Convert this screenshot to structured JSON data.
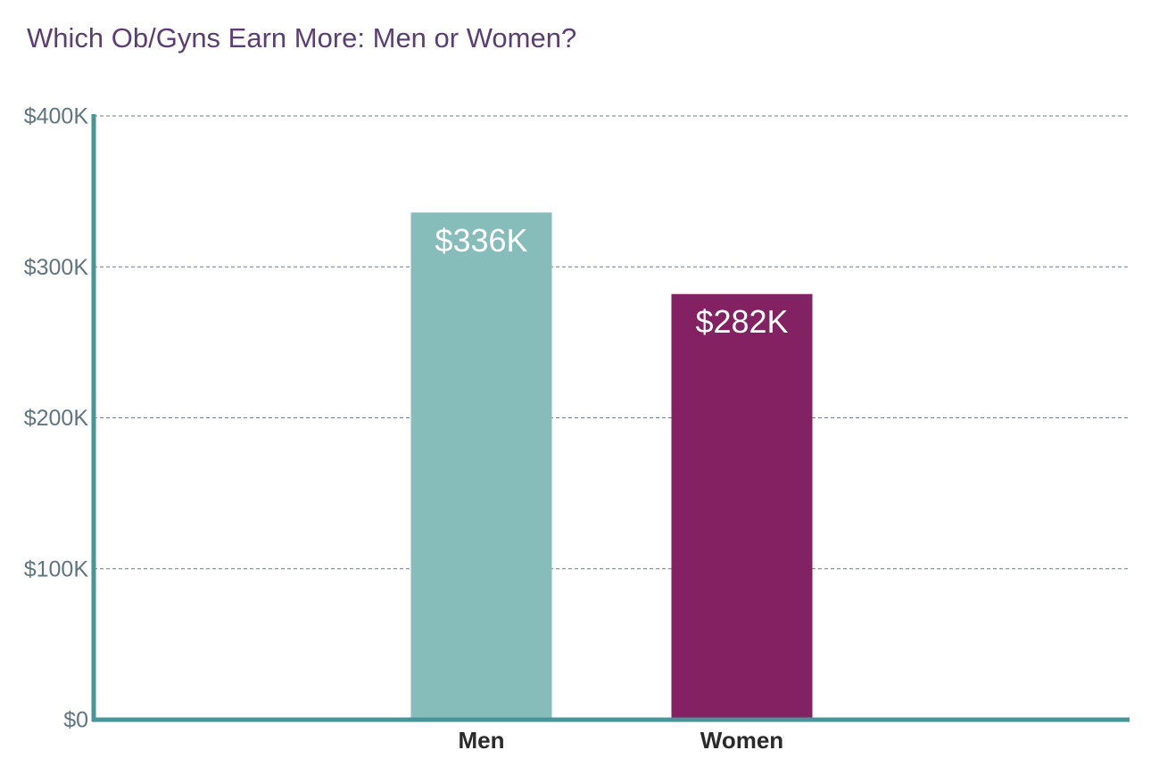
{
  "chart_data": {
    "type": "bar",
    "title": "Which Ob/Gyns Earn More: Men or Women?",
    "categories": [
      "Men",
      "Women"
    ],
    "values": [
      336000,
      282000
    ],
    "value_labels": [
      "$336K",
      "$282K"
    ],
    "colors": [
      "#86bcb9",
      "#832163"
    ],
    "ylim": [
      0,
      400000
    ],
    "yticks": [
      {
        "value": 0,
        "label": "$0"
      },
      {
        "value": 100000,
        "label": "$100K"
      },
      {
        "value": 200000,
        "label": "$200K"
      },
      {
        "value": 300000,
        "label": "$300K"
      },
      {
        "value": 400000,
        "label": "$400K"
      }
    ],
    "grid": true
  }
}
